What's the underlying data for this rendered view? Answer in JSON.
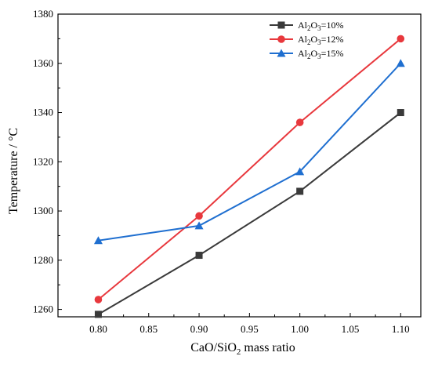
{
  "chart_data": {
    "type": "line",
    "title": "",
    "xlabel": "CaO/SiO",
    "xlabel_sub": "2",
    "xlabel_tail": " mass ratio",
    "ylabel": "Temperature / °C",
    "x": [
      0.8,
      0.9,
      1.0,
      1.1
    ],
    "x_tick_labels": [
      "0.80",
      "0.85",
      "0.90",
      "0.95",
      "1.00",
      "1.05",
      "1.10"
    ],
    "x_ticks": [
      0.8,
      0.85,
      0.9,
      0.95,
      1.0,
      1.05,
      1.1
    ],
    "y_tick_labels": [
      "1260",
      "1280",
      "1300",
      "1320",
      "1340",
      "1360",
      "1380"
    ],
    "y_ticks": [
      1260,
      1280,
      1300,
      1320,
      1340,
      1360,
      1380
    ],
    "xlim": [
      0.76,
      1.12
    ],
    "ylim": [
      1257,
      1380
    ],
    "grid": false,
    "legend_position": "top-right",
    "series": [
      {
        "name": "Al2O3=10%",
        "label_parts": [
          "Al",
          "2",
          "O",
          "3",
          "=10%"
        ],
        "values": [
          1258,
          1282,
          1308,
          1340
        ],
        "color": "#3a3a3a",
        "marker": "square"
      },
      {
        "name": "Al2O3=12%",
        "label_parts": [
          "Al",
          "2",
          "O",
          "3",
          "=12%"
        ],
        "values": [
          1264,
          1298,
          1336,
          1370
        ],
        "color": "#e8383d",
        "marker": "circle"
      },
      {
        "name": "Al2O3=15%",
        "label_parts": [
          "Al",
          "2",
          "O",
          "3",
          "=15%"
        ],
        "values": [
          1288,
          1294,
          1316,
          1360
        ],
        "color": "#1f6fd0",
        "marker": "triangle"
      }
    ]
  }
}
